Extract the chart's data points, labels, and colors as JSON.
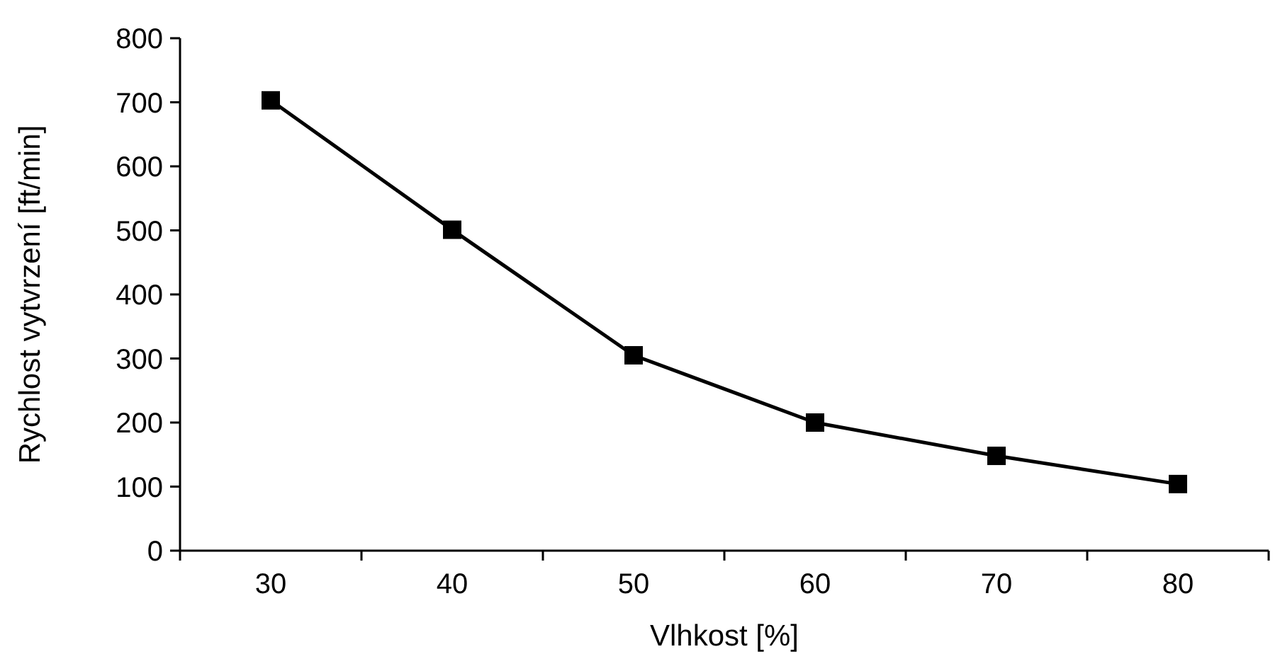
{
  "chart_data": {
    "type": "line",
    "xlabel": "Vlhkost [%]",
    "ylabel": "Rychlost vytvrzení [ft/min]",
    "categories": [
      "30",
      "40",
      "50",
      "60",
      "70",
      "80"
    ],
    "series": [
      {
        "color": "#000000",
        "values": [
          703,
          501,
          305,
          200,
          148,
          104
        ]
      }
    ],
    "ylim": [
      0,
      800
    ],
    "yticks": [
      0,
      100,
      200,
      300,
      400,
      500,
      600,
      700,
      800
    ],
    "marker": "square",
    "line_style": "solid",
    "grid": false
  }
}
